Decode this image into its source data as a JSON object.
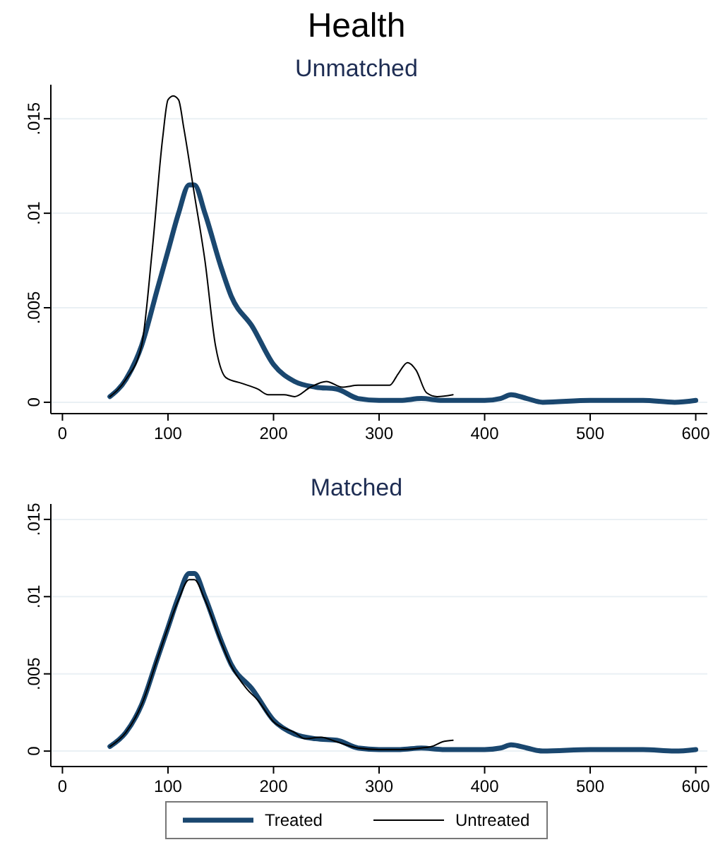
{
  "chart_data": [
    {
      "type": "line",
      "title": "Health",
      "subtitle": "Unmatched",
      "xlim": [
        -11,
        611
      ],
      "xticks": [
        0,
        100,
        200,
        300,
        400,
        500,
        600
      ],
      "ylim": [
        -0.0006,
        0.0168
      ],
      "yticks": [
        0,
        {
          "value": 0.005,
          "label": ".005"
        },
        {
          "value": 0.01,
          "label": ".01"
        },
        {
          "value": 0.015,
          "label": ".015"
        }
      ],
      "grid": "y",
      "series": [
        {
          "color": "#1a476f",
          "x": [
            45,
            60,
            75,
            90,
            100,
            110,
            120,
            125,
            135,
            150,
            160,
            180,
            200,
            220,
            240,
            260,
            280,
            300,
            320,
            340,
            360,
            400,
            415,
            425,
            440,
            455,
            500,
            510,
            550,
            580,
            600
          ],
          "values": [
            0.0003,
            0.0012,
            0.003,
            0.006,
            0.008,
            0.01,
            0.0115,
            0.0115,
            0.01,
            0.0072,
            0.0056,
            0.004,
            0.002,
            0.0011,
            0.0008,
            0.0007,
            0.0002,
            0.0001,
            0.0001,
            0.0002,
            0.0001,
            0.0001,
            0.0002,
            0.0004,
            0.0002,
            0,
            0.0001,
            0.0001,
            0.0001,
            0,
            0.0001
          ]
        },
        {
          "color": "#000000",
          "x": [
            45,
            60,
            75,
            85,
            95,
            100,
            105,
            110,
            115,
            125,
            135,
            145,
            155,
            170,
            185,
            195,
            210,
            220,
            235,
            250,
            265,
            280,
            300,
            310,
            318,
            327,
            335,
            345,
            355,
            370
          ],
          "values": [
            0.0003,
            0.0012,
            0.003,
            0.008,
            0.014,
            0.016,
            0.0162,
            0.016,
            0.0145,
            0.011,
            0.0075,
            0.003,
            0.0013,
            0.001,
            0.0007,
            0.0004,
            0.0004,
            0.0003,
            0.0008,
            0.0011,
            0.0008,
            0.0009,
            0.0009,
            0.0009,
            0.0015,
            0.0021,
            0.0017,
            0.0005,
            0.0003,
            0.0004
          ]
        }
      ]
    },
    {
      "type": "line",
      "title": "Matched",
      "xlim": [
        -11,
        611
      ],
      "xticks": [
        0,
        100,
        200,
        300,
        400,
        500,
        600
      ],
      "ylim": [
        -0.001,
        0.016
      ],
      "yticks": [
        0,
        {
          "value": 0.005,
          "label": ".005"
        },
        {
          "value": 0.01,
          "label": ".01"
        },
        {
          "value": 0.015,
          "label": ".015"
        }
      ],
      "grid": "y",
      "legend": "bottom",
      "series": [
        {
          "name": "Treated",
          "color": "#1a476f",
          "x": [
            45,
            60,
            75,
            90,
            100,
            110,
            120,
            125,
            135,
            150,
            160,
            180,
            200,
            220,
            240,
            260,
            280,
            300,
            320,
            340,
            360,
            400,
            415,
            425,
            440,
            455,
            500,
            510,
            550,
            580,
            600
          ],
          "values": [
            0.0003,
            0.0012,
            0.003,
            0.006,
            0.008,
            0.01,
            0.0115,
            0.0115,
            0.01,
            0.0072,
            0.0056,
            0.004,
            0.002,
            0.0011,
            0.0008,
            0.0007,
            0.0002,
            0.0001,
            0.0001,
            0.0002,
            0.0001,
            0.0001,
            0.0002,
            0.0004,
            0.0002,
            0,
            0.0001,
            0.0001,
            0.0001,
            0,
            0.0001
          ]
        },
        {
          "name": "Untreated",
          "color": "#000000",
          "x": [
            45,
            60,
            75,
            90,
            100,
            110,
            120,
            125,
            135,
            150,
            160,
            175,
            185,
            200,
            220,
            230,
            245,
            260,
            280,
            300,
            320,
            340,
            350,
            360,
            370
          ],
          "values": [
            0.0003,
            0.0012,
            0.003,
            0.006,
            0.008,
            0.0098,
            0.0111,
            0.0111,
            0.0098,
            0.0071,
            0.0055,
            0.004,
            0.0033,
            0.0019,
            0.0012,
            0.0008,
            0.0009,
            0.0006,
            0.0002,
            0.0001,
            0.0001,
            0.0002,
            0.0003,
            0.0006,
            0.0007
          ]
        }
      ]
    }
  ]
}
